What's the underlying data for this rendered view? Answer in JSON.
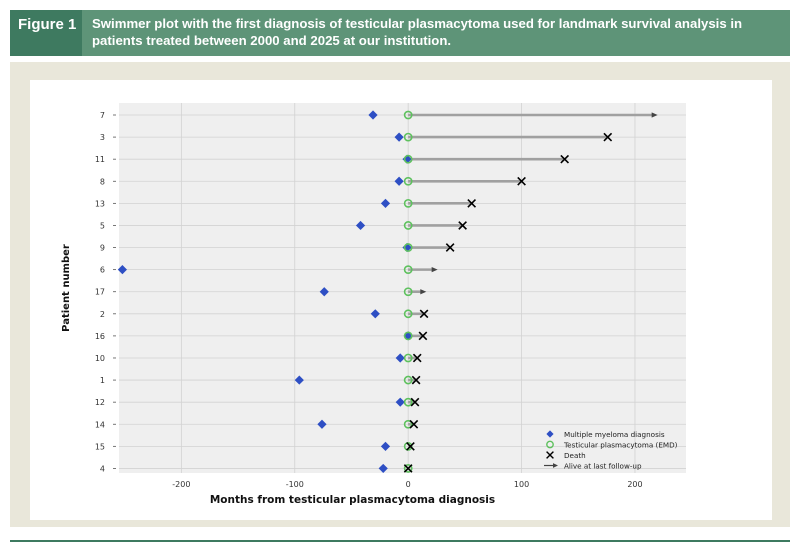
{
  "figure": {
    "label": "Figure 1",
    "title": "Swimmer plot with the first diagnosis of testicular plasmacytoma used for landmark survival analysis in patients treated between 2000 and 2025 at our institution."
  },
  "colors": {
    "header_dark": "#3e7a60",
    "header_light": "#5e9478",
    "panel": "#e9e7da",
    "plot_bg": "#efefef",
    "myeloma_marker": "#2e4fc4",
    "emd_marker": "#5ec15e",
    "bar": "#a0a0a0",
    "death_marker": "#000000"
  },
  "chart_data": {
    "type": "swimmer",
    "xlabel": "Months from testicular plasmacytoma diagnosis",
    "ylabel": "Patient number",
    "xlim": [
      -255,
      245
    ],
    "xticks": [
      -200,
      -100,
      0,
      100,
      200
    ],
    "grid": true,
    "legend_position": "lower-right",
    "legend": [
      {
        "key": "myeloma",
        "label": "Multiple myeloma diagnosis"
      },
      {
        "key": "emd",
        "label": "Testicular plasmacytoma (EMD)"
      },
      {
        "key": "death",
        "label": "Death"
      },
      {
        "key": "alive",
        "label": "Alive at last follow-up"
      }
    ],
    "patients": [
      {
        "id": "7",
        "myeloma": -31,
        "end": 220,
        "status": "alive"
      },
      {
        "id": "3",
        "myeloma": -8,
        "end": 176,
        "status": "death"
      },
      {
        "id": "11",
        "myeloma": -1,
        "end": 138,
        "status": "death"
      },
      {
        "id": "8",
        "myeloma": -8,
        "end": 100,
        "status": "death"
      },
      {
        "id": "13",
        "myeloma": -20,
        "end": 56,
        "status": "death"
      },
      {
        "id": "5",
        "myeloma": -42,
        "end": 48,
        "status": "death"
      },
      {
        "id": "9",
        "myeloma": -1,
        "end": 37,
        "status": "death"
      },
      {
        "id": "6",
        "myeloma": -252,
        "end": 26,
        "status": "alive"
      },
      {
        "id": "17",
        "myeloma": -74,
        "end": 16,
        "status": "alive"
      },
      {
        "id": "2",
        "myeloma": -29,
        "end": 14,
        "status": "death"
      },
      {
        "id": "16",
        "myeloma": 0,
        "end": 13,
        "status": "death"
      },
      {
        "id": "10",
        "myeloma": -7,
        "end": 8,
        "status": "death"
      },
      {
        "id": "1",
        "myeloma": -96,
        "end": 7,
        "status": "death"
      },
      {
        "id": "12",
        "myeloma": -7,
        "end": 6,
        "status": "death"
      },
      {
        "id": "14",
        "myeloma": -76,
        "end": 5,
        "status": "death"
      },
      {
        "id": "15",
        "myeloma": -20,
        "end": 2,
        "status": "death"
      },
      {
        "id": "4",
        "myeloma": -22,
        "end": 0,
        "status": "death"
      }
    ]
  }
}
